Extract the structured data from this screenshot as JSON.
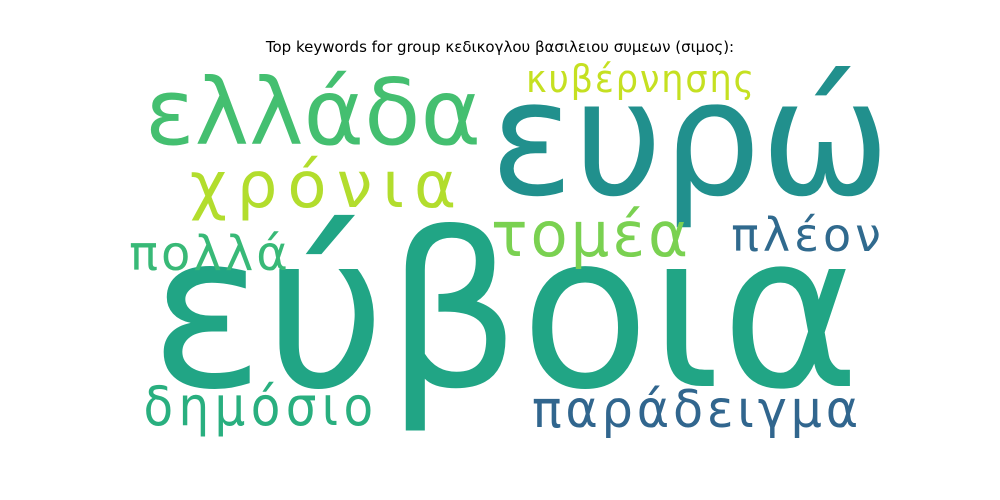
{
  "chart_data": {
    "type": "wordcloud",
    "title": "Top keywords for group κεδικογλου βασιλειου συμεων (σιμος):",
    "words": [
      {
        "text": "εύβοια",
        "color": "#21a585"
      },
      {
        "text": "ευρώ",
        "color": "#21908d"
      },
      {
        "text": "ελλάδα",
        "color": "#44bf70"
      },
      {
        "text": "χρόνια",
        "color": "#b2dd2d"
      },
      {
        "text": "τομέα",
        "color": "#7ad151"
      },
      {
        "text": "πλέον",
        "color": "#306a8e"
      },
      {
        "text": "πολλά",
        "color": "#38b977"
      },
      {
        "text": "κυβέρνησης",
        "color": "#c5e021"
      },
      {
        "text": "δημόσιο",
        "color": "#29af7f"
      },
      {
        "text": "παράδειγμα",
        "color": "#31668e"
      }
    ]
  }
}
